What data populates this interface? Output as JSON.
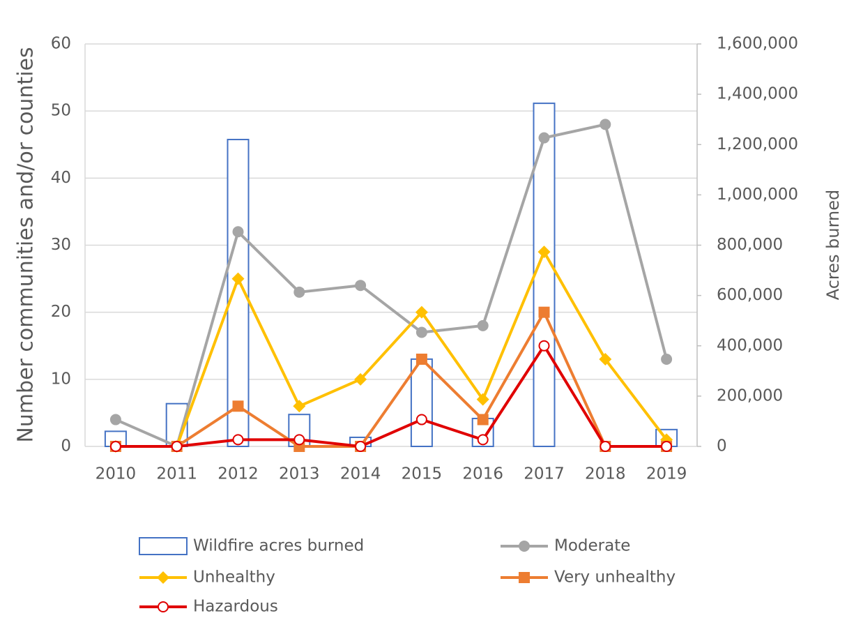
{
  "chart_data": {
    "type": "combo",
    "categories": [
      "2010",
      "2011",
      "2012",
      "2013",
      "2014",
      "2015",
      "2016",
      "2017",
      "2018",
      "2019"
    ],
    "y_label": "Number communities and/or counties",
    "y2_label": "Acres burned",
    "ylim": [
      0,
      60
    ],
    "yticks": [
      0,
      10,
      20,
      30,
      40,
      50,
      60
    ],
    "y2lim": [
      0,
      1600000
    ],
    "y2ticks": [
      0,
      {
        "value": 200000,
        "label": "200,000"
      },
      {
        "value": 400000,
        "label": "400,000"
      },
      {
        "value": 600000,
        "label": "600,000"
      },
      {
        "value": 800000,
        "label": "800,000"
      },
      {
        "value": 1000000,
        "label": "1,000,000"
      },
      {
        "value": 1200000,
        "label": "1,200,000"
      },
      {
        "value": 1400000,
        "label": "1,400,000"
      },
      {
        "value": 1600000,
        "label": "1,600,000"
      }
    ],
    "grid": true,
    "series": [
      {
        "name": "Wildfire acres burned",
        "type": "bar",
        "axis": "y2",
        "color": "#4472c4",
        "values": [
          60000,
          170000,
          1220000,
          127000,
          36000,
          347000,
          111000,
          1364000,
          0,
          67000
        ]
      },
      {
        "name": "Moderate",
        "type": "line",
        "marker": "circle",
        "color": "#a5a5a5",
        "values": [
          4,
          0,
          32,
          23,
          24,
          17,
          18,
          46,
          48,
          13
        ]
      },
      {
        "name": "Unhealthy",
        "type": "line",
        "marker": "diamond",
        "color": "#ffc000",
        "values": [
          0,
          0,
          25,
          6,
          10,
          20,
          7,
          29,
          13,
          1
        ]
      },
      {
        "name": "Very unhealthy",
        "type": "line",
        "marker": "square",
        "color": "#ed7d31",
        "values": [
          0,
          0,
          6,
          0,
          0,
          13,
          4,
          20,
          0,
          0
        ]
      },
      {
        "name": "Hazardous",
        "type": "line",
        "marker": "open-circle",
        "color": "#e00000",
        "values": [
          0,
          0,
          1,
          1,
          0,
          4,
          1,
          15,
          0,
          0
        ]
      }
    ]
  }
}
